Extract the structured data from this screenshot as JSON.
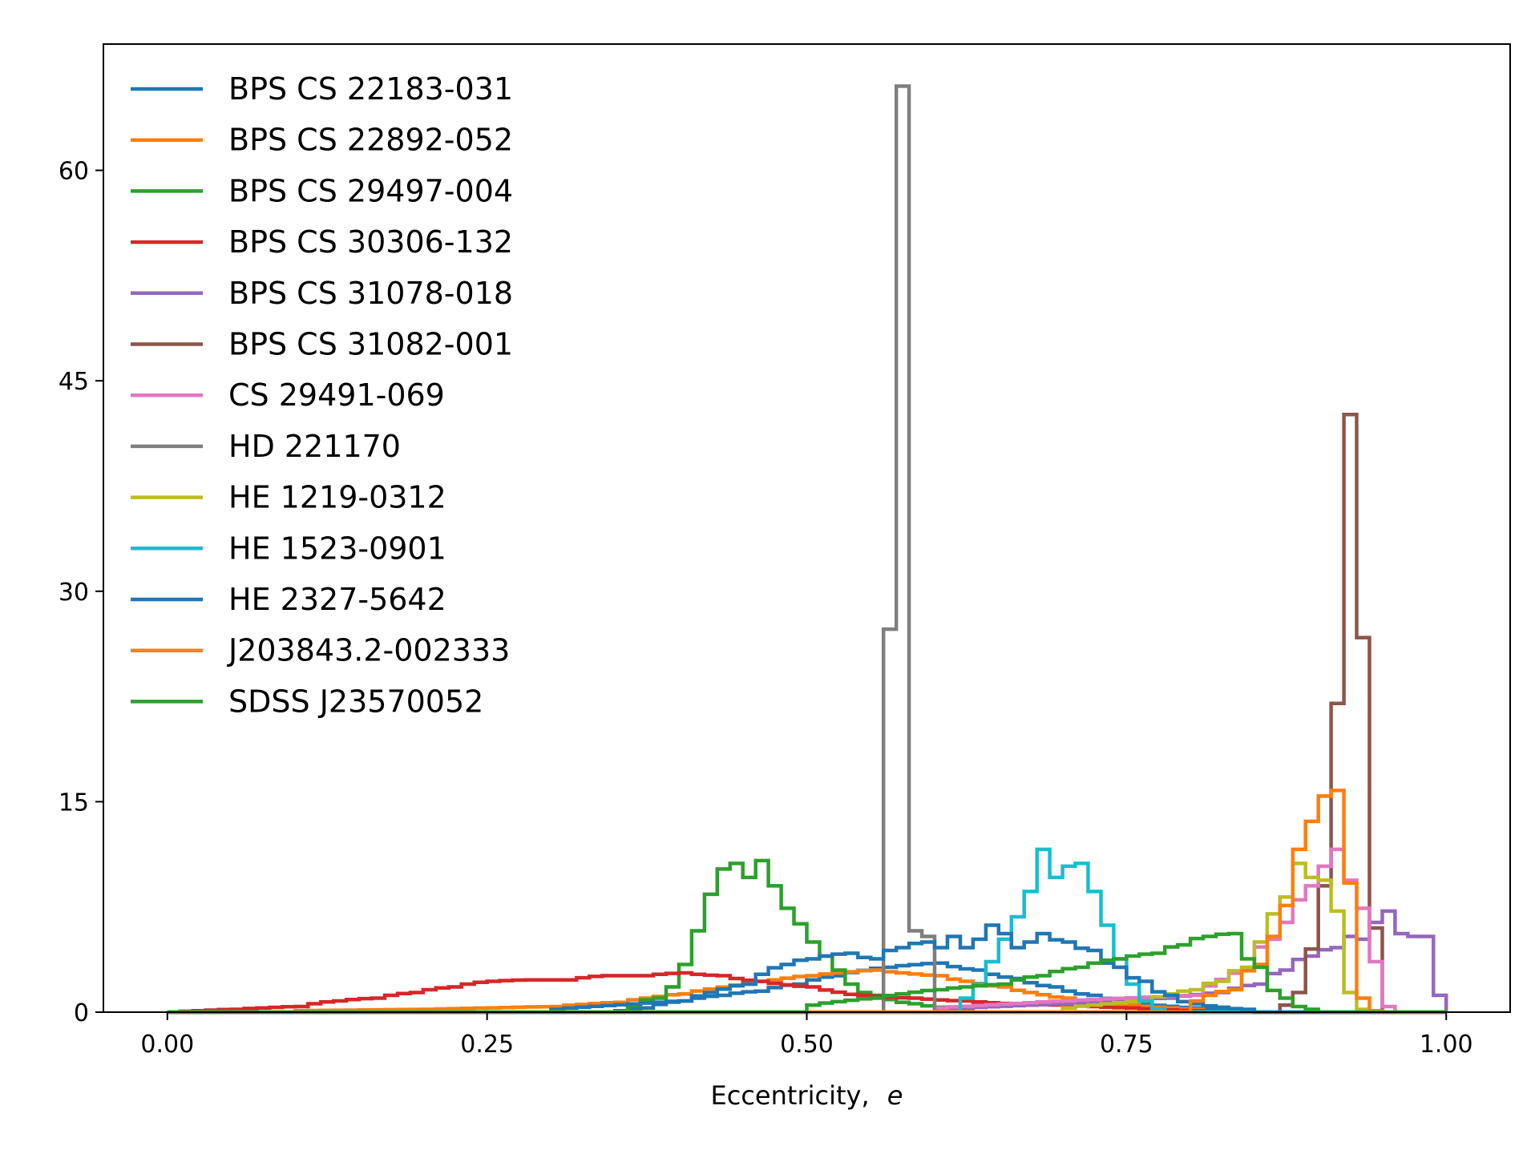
{
  "chart_data": {
    "type": "histogram-step",
    "xlabel": "Eccentricity,",
    "xlabel_symbol": "e",
    "ylabel": "",
    "xlim": [
      -0.05,
      1.05
    ],
    "ylim": [
      0,
      69
    ],
    "xticks": [
      0.0,
      0.25,
      0.5,
      0.75,
      1.0
    ],
    "xtick_labels": [
      "0.00",
      "0.25",
      "0.50",
      "0.75",
      "1.00"
    ],
    "yticks": [
      0,
      15,
      30,
      45,
      60
    ],
    "ytick_labels": [
      "0",
      "15",
      "30",
      "45",
      "60"
    ],
    "grid": false,
    "legend_position": "upper-left",
    "bin_width": 0.01,
    "series": [
      {
        "name": "BPS CS 22183-031",
        "color": "#1f77b4",
        "x": [
          0.35,
          0.37,
          0.4,
          0.43,
          0.46,
          0.49,
          0.52,
          0.56,
          0.6,
          0.63,
          0.66,
          0.69,
          0.72,
          0.76,
          0.8,
          0.84
        ],
        "y": [
          0.1,
          0.3,
          0.8,
          1.2,
          1.5,
          2.0,
          2.6,
          3.2,
          3.5,
          3.0,
          2.4,
          1.8,
          1.2,
          0.6,
          0.3,
          0.1
        ]
      },
      {
        "name": "BPS CS 22892-052",
        "color": "#ff7f0e",
        "x": [
          0.1,
          0.2,
          0.3,
          0.35,
          0.4,
          0.45,
          0.5,
          0.55,
          0.6,
          0.65,
          0.7,
          0.75,
          0.8
        ],
        "y": [
          0.1,
          0.2,
          0.4,
          0.7,
          1.3,
          2.0,
          2.6,
          3.0,
          2.6,
          1.8,
          1.0,
          0.5,
          0.2
        ]
      },
      {
        "name": "BPS CS 29497-004",
        "color": "#2ca02c",
        "x": [
          0.36,
          0.38,
          0.39,
          0.4,
          0.41,
          0.42,
          0.43,
          0.44,
          0.45,
          0.46,
          0.47,
          0.48,
          0.49,
          0.5,
          0.51,
          0.52,
          0.53,
          0.55,
          0.58,
          0.62
        ],
        "y": [
          0.5,
          1.0,
          1.8,
          3.4,
          5.8,
          8.4,
          10.2,
          10.6,
          9.6,
          10.8,
          9.0,
          7.4,
          6.3,
          5.0,
          4.0,
          3.0,
          2.0,
          1.2,
          0.6,
          0.2
        ]
      },
      {
        "name": "BPS CS 30306-132",
        "color": "#d62728",
        "x": [
          0.0,
          0.05,
          0.1,
          0.13,
          0.16,
          0.19,
          0.22,
          0.25,
          0.28,
          0.31,
          0.34,
          0.37,
          0.4,
          0.43,
          0.46,
          0.5,
          0.54,
          0.58,
          0.62,
          0.66,
          0.7,
          0.75,
          0.8
        ],
        "y": [
          0.0,
          0.2,
          0.4,
          0.8,
          1.0,
          1.4,
          1.8,
          2.2,
          2.3,
          2.3,
          2.6,
          2.6,
          2.8,
          2.6,
          2.2,
          1.8,
          1.2,
          1.0,
          0.8,
          0.6,
          0.5,
          0.3,
          0.1
        ]
      },
      {
        "name": "BPS CS 31078-018",
        "color": "#9467bd",
        "x": [
          0.6,
          0.7,
          0.78,
          0.82,
          0.85,
          0.87,
          0.89,
          0.91,
          0.92,
          0.93,
          0.94,
          0.95,
          0.96,
          0.97,
          0.98,
          0.99
        ],
        "y": [
          0.2,
          0.6,
          1.0,
          1.4,
          2.0,
          3.0,
          4.0,
          4.6,
          5.4,
          5.2,
          6.4,
          7.2,
          5.6,
          5.4,
          5.4,
          1.2
        ]
      },
      {
        "name": "BPS CS 31082-001",
        "color": "#8c564b",
        "x": [
          0.87,
          0.88,
          0.89,
          0.9,
          0.91,
          0.92,
          0.93,
          0.94
        ],
        "y": [
          0.5,
          1.4,
          4.5,
          9.0,
          22.0,
          42.6,
          26.7,
          6.0
        ]
      },
      {
        "name": "CS 29491-069",
        "color": "#e377c2",
        "x": [
          0.6,
          0.7,
          0.8,
          0.84,
          0.86,
          0.87,
          0.88,
          0.89,
          0.9,
          0.91,
          0.92,
          0.93,
          0.94,
          0.95
        ],
        "y": [
          0.3,
          0.8,
          1.2,
          3.0,
          5.2,
          6.4,
          8.0,
          9.0,
          10.4,
          11.6,
          9.4,
          7.4,
          3.6,
          0.4
        ]
      },
      {
        "name": "HD 221170",
        "color": "#7f7f7f",
        "x": [
          0.56,
          0.57,
          0.58,
          0.59
        ],
        "y": [
          27.3,
          66.0,
          5.8,
          5.4
        ]
      },
      {
        "name": "HE 1219-0312",
        "color": "#bcbd22",
        "x": [
          0.7,
          0.76,
          0.8,
          0.82,
          0.84,
          0.85,
          0.86,
          0.87,
          0.88,
          0.89,
          0.9,
          0.91,
          0.92,
          0.93
        ],
        "y": [
          0.3,
          0.8,
          1.6,
          2.2,
          3.2,
          5.0,
          7.0,
          8.2,
          10.6,
          9.6,
          9.4,
          7.2,
          1.4,
          0.2
        ]
      },
      {
        "name": "HE 1523-0901",
        "color": "#17becf",
        "x": [
          0.62,
          0.63,
          0.64,
          0.65,
          0.66,
          0.67,
          0.68,
          0.69,
          0.7,
          0.71,
          0.72,
          0.73,
          0.74,
          0.75,
          0.76,
          0.77
        ],
        "y": [
          1.0,
          2.0,
          3.6,
          5.2,
          6.8,
          8.6,
          11.6,
          9.6,
          10.4,
          10.6,
          8.6,
          6.2,
          3.8,
          2.0,
          0.8,
          0.2
        ]
      },
      {
        "name": "HE 2327-5642",
        "color": "#1f77b4",
        "x": [
          0.3,
          0.4,
          0.45,
          0.48,
          0.5,
          0.53,
          0.55,
          0.57,
          0.59,
          0.6,
          0.61,
          0.62,
          0.63,
          0.64,
          0.65,
          0.66,
          0.67,
          0.68,
          0.7,
          0.72,
          0.74,
          0.76,
          0.78,
          0.8,
          0.84
        ],
        "y": [
          0.2,
          0.8,
          2.0,
          3.4,
          3.8,
          4.2,
          3.8,
          4.6,
          5.0,
          4.6,
          5.4,
          4.6,
          5.2,
          6.2,
          5.6,
          4.6,
          5.0,
          5.6,
          5.0,
          4.4,
          3.2,
          2.2,
          1.2,
          0.6,
          0.2
        ]
      },
      {
        "name": "J203843.2-002333",
        "color": "#ff7f0e",
        "x": [
          0.8,
          0.83,
          0.85,
          0.86,
          0.87,
          0.88,
          0.89,
          0.9,
          0.91,
          0.92,
          0.93,
          0.94
        ],
        "y": [
          0.8,
          1.6,
          3.4,
          5.4,
          7.6,
          11.6,
          13.6,
          15.4,
          15.8,
          9.2,
          1.0,
          0.1
        ]
      },
      {
        "name": "SDSS J23570052",
        "color": "#2ca02c",
        "x": [
          0.5,
          0.55,
          0.6,
          0.65,
          0.68,
          0.71,
          0.74,
          0.77,
          0.79,
          0.81,
          0.83,
          0.85,
          0.87,
          0.89
        ],
        "y": [
          0.5,
          1.0,
          1.6,
          2.0,
          2.6,
          3.2,
          3.8,
          4.2,
          4.8,
          5.4,
          5.6,
          3.2,
          1.0,
          0.2
        ]
      }
    ]
  }
}
